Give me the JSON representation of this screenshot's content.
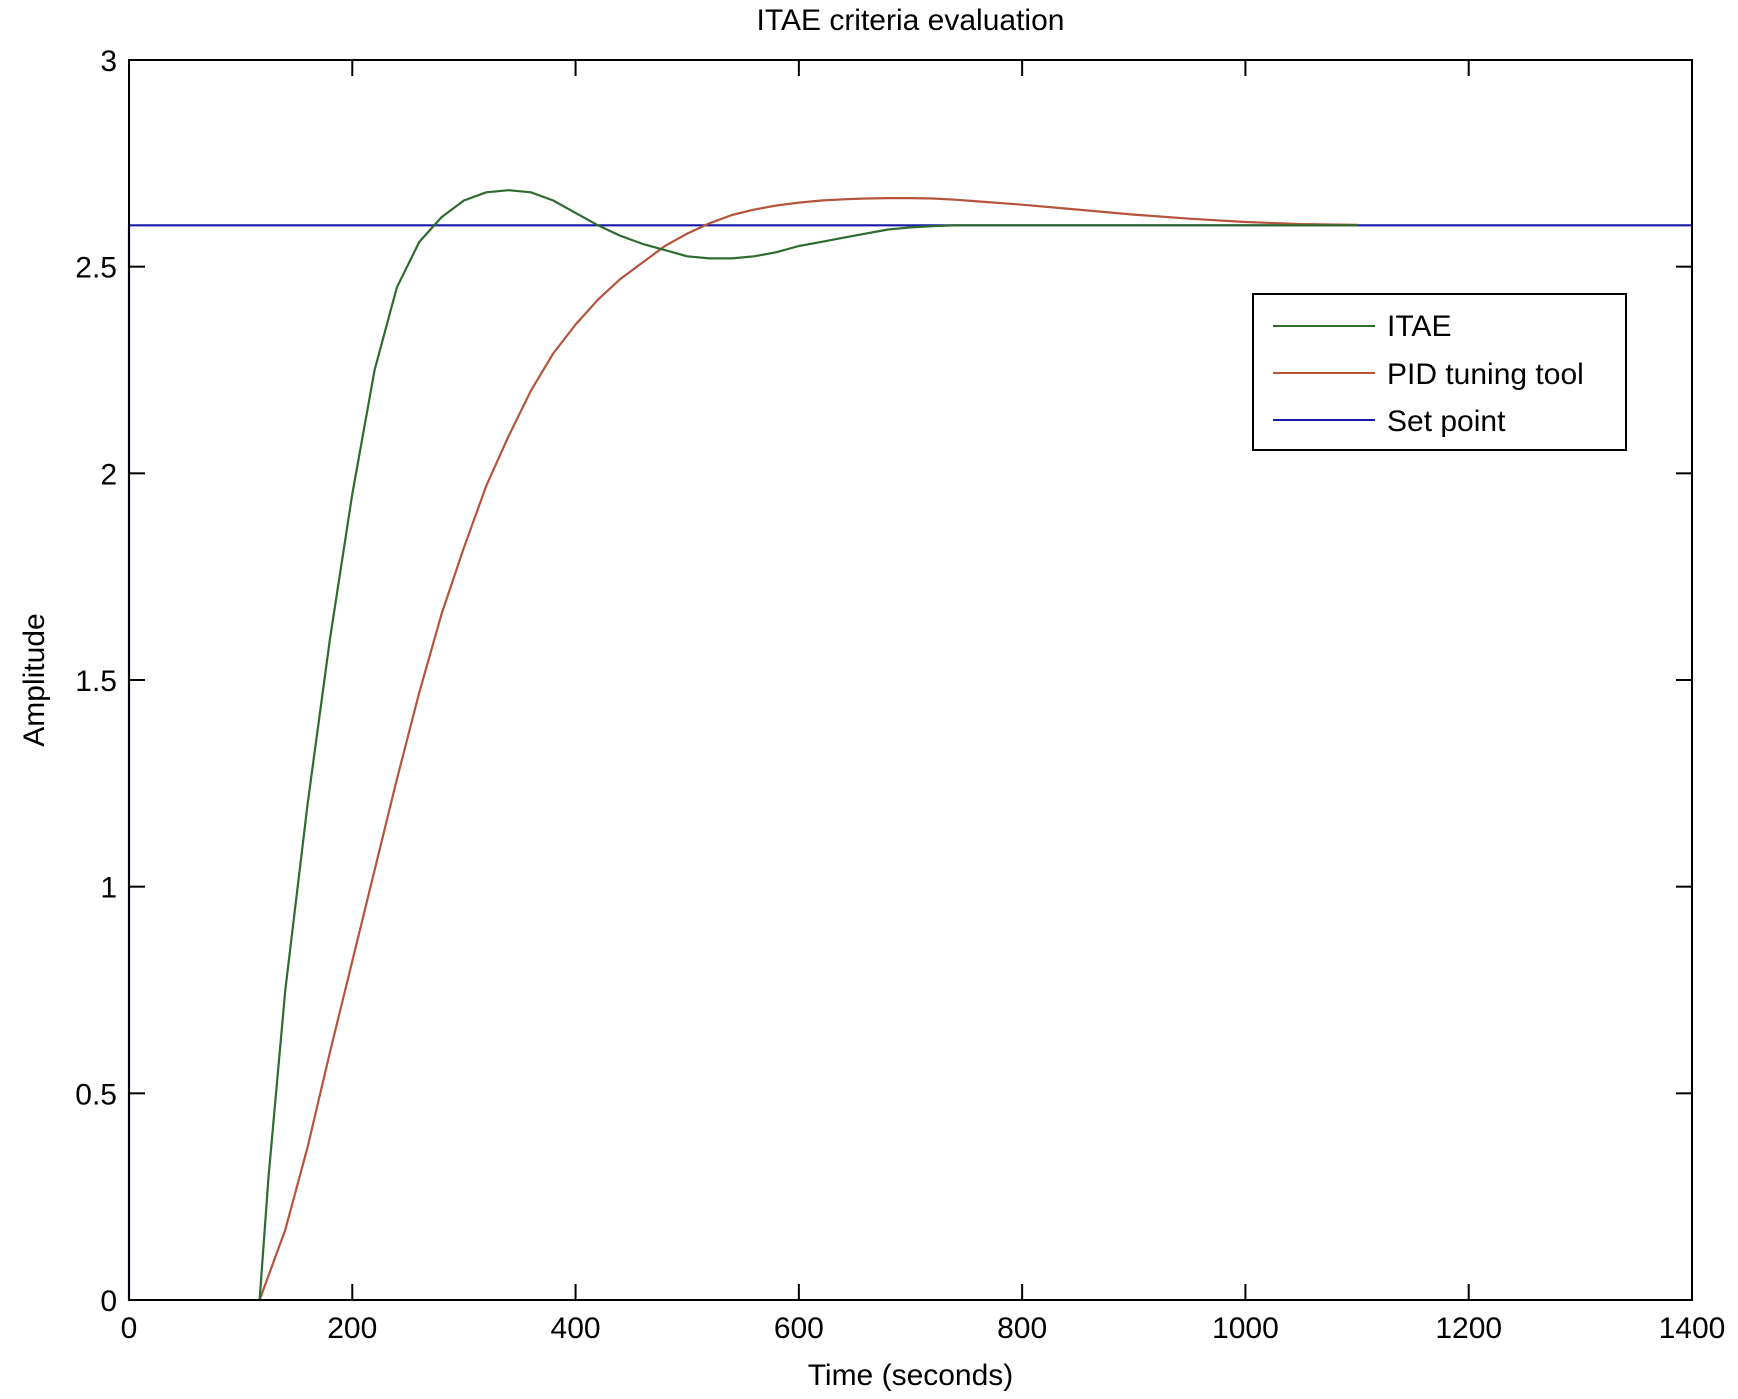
{
  "chart_data": {
    "type": "line",
    "title": "ITAE criteria evaluation",
    "xlabel": "Time (seconds)",
    "ylabel": "Amplitude",
    "xlim": [
      0,
      1400
    ],
    "ylim": [
      0,
      3
    ],
    "xticks": [
      0,
      200,
      400,
      600,
      800,
      1000,
      1200,
      1400
    ],
    "yticks": [
      0,
      0.5,
      1,
      1.5,
      2,
      2.5,
      3
    ],
    "xtick_labels": [
      "0",
      "200",
      "400",
      "600",
      "800",
      "1000",
      "1200",
      "1400"
    ],
    "ytick_labels": [
      "0",
      "0.5",
      "1",
      "1.5",
      "2",
      "2.5",
      "3"
    ],
    "grid": false,
    "legend_position": "top-right",
    "series": [
      {
        "name": "ITAE",
        "color": "#2e6b2e",
        "x": [
          117,
          125,
          140,
          160,
          180,
          200,
          220,
          240,
          260,
          280,
          300,
          320,
          340,
          360,
          380,
          400,
          420,
          440,
          460,
          480,
          500,
          520,
          540,
          560,
          580,
          600,
          620,
          640,
          660,
          680,
          700,
          720,
          740,
          760,
          800,
          850,
          900,
          950,
          1000,
          1050,
          1100
        ],
        "y": [
          0.0,
          0.3,
          0.75,
          1.2,
          1.6,
          1.95,
          2.25,
          2.45,
          2.56,
          2.62,
          2.66,
          2.68,
          2.685,
          2.68,
          2.66,
          2.63,
          2.6,
          2.575,
          2.555,
          2.54,
          2.525,
          2.52,
          2.52,
          2.525,
          2.535,
          2.55,
          2.56,
          2.57,
          2.58,
          2.59,
          2.595,
          2.598,
          2.6,
          2.6,
          2.6,
          2.6,
          2.6,
          2.6,
          2.6,
          2.6,
          2.6
        ]
      },
      {
        "name": "PID tuning tool",
        "color": "#b5533c",
        "x": [
          117,
          140,
          160,
          180,
          200,
          220,
          240,
          260,
          280,
          300,
          320,
          340,
          360,
          380,
          400,
          420,
          440,
          460,
          480,
          500,
          520,
          540,
          560,
          580,
          600,
          620,
          640,
          660,
          680,
          700,
          720,
          740,
          760,
          800,
          850,
          900,
          950,
          1000,
          1050,
          1100
        ],
        "y": [
          0.0,
          0.17,
          0.37,
          0.6,
          0.82,
          1.04,
          1.26,
          1.47,
          1.66,
          1.82,
          1.97,
          2.09,
          2.2,
          2.29,
          2.36,
          2.42,
          2.47,
          2.51,
          2.55,
          2.58,
          2.605,
          2.625,
          2.638,
          2.648,
          2.655,
          2.66,
          2.663,
          2.665,
          2.666,
          2.666,
          2.665,
          2.662,
          2.658,
          2.65,
          2.638,
          2.626,
          2.616,
          2.608,
          2.603,
          2.601
        ]
      },
      {
        "name": "Set point",
        "color": "#1a1aa8",
        "x": [
          0,
          0,
          1400
        ],
        "y": [
          0,
          2.6,
          2.6
        ]
      }
    ]
  }
}
